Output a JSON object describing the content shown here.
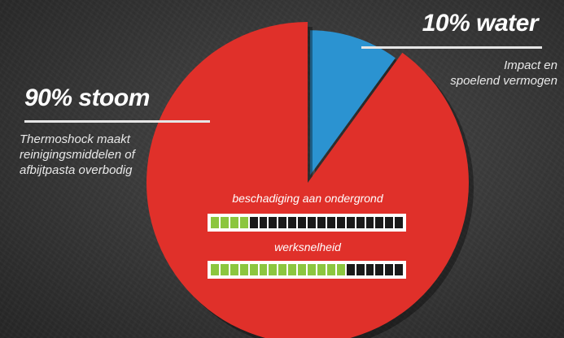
{
  "chart_data": {
    "type": "pie",
    "slices": [
      {
        "label": "90% stoom",
        "value": 90,
        "color": "#e0302a"
      },
      {
        "label": "10% water",
        "value": 10,
        "color": "#2b93d1"
      }
    ],
    "annotations": {
      "steam": {
        "title": "90% stoom",
        "description": [
          "Thermoshock maakt",
          "reinigingsmiddelen of",
          "afbijtpasta overbodig"
        ]
      },
      "water": {
        "title": "10% water",
        "description": [
          "Impact en",
          "spoelend vermogen"
        ]
      }
    },
    "meters": [
      {
        "label": "beschadiging aan ondergrond",
        "level": 0.2
      },
      {
        "label": "werksnelheid",
        "level": 0.7
      }
    ]
  },
  "colors": {
    "steam": "#e0302a",
    "water": "#2b93d1",
    "meter_on": "#8cc63f",
    "meter_off": "#1a1a1a"
  }
}
